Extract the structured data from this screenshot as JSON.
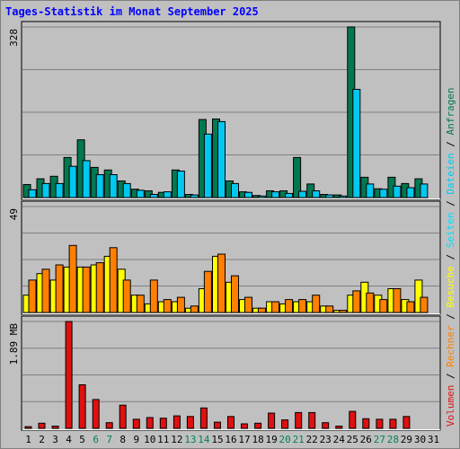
{
  "chart_data": {
    "type": "bar",
    "title": "Tages-Statistik im Monat September 2025",
    "days": [
      "1",
      "2",
      "3",
      "4",
      "5",
      "6",
      "7",
      "8",
      "9",
      "10",
      "11",
      "12",
      "13",
      "14",
      "15",
      "16",
      "17",
      "18",
      "19",
      "20",
      "21",
      "22",
      "23",
      "24",
      "25",
      "26",
      "27",
      "28",
      "29",
      "30",
      "31"
    ],
    "weekend_days": [
      "6",
      "7",
      "13",
      "14",
      "20",
      "21",
      "27",
      "28"
    ],
    "colors": {
      "anfragen": "#007850",
      "dateien": "#00c8f0",
      "seiten": "#00e0ff",
      "besuche": "#ffff00",
      "rechner": "#ff8000",
      "volumen": "#e01010",
      "title": "#0000ff",
      "weekend": "#00805a",
      "weekday": "#000000",
      "background": "#c0c0c0",
      "gridline": "#808080"
    },
    "panels": [
      {
        "name": "requests",
        "max_label": "328",
        "ymax": 328,
        "series": [
          {
            "key": "anfragen",
            "values": [
              25,
              36,
              41,
              77,
              111,
              58,
              53,
              32,
              16,
              13,
              10,
              53,
              6,
              150,
              151,
              32,
              11,
              4,
              13,
              13,
              77,
              26,
              6,
              5,
              328,
              39,
              17,
              39,
              27,
              36,
              null
            ]
          },
          {
            "key": "dateien",
            "values": [
              15,
              27,
              27,
              60,
              71,
              44,
              44,
              27,
              14,
              6,
              11,
              51,
              5,
              122,
              146,
              27,
              10,
              3,
              11,
              8,
              12,
              13,
              5,
              3,
              208,
              26,
              16,
              22,
              19,
              26,
              null
            ]
          }
        ]
      },
      {
        "name": "visits",
        "max_label": "49",
        "ymax": 49,
        "series": [
          {
            "key": "besuche",
            "values": [
              8,
              18,
              15,
              21,
              21,
              22,
              26,
              20,
              8,
              4,
              5,
              5,
              2,
              11,
              26,
              14,
              6,
              2,
              5,
              4,
              5,
              5,
              3,
              1,
              8,
              14,
              8,
              11,
              6,
              15,
              null
            ]
          },
          {
            "key": "rechner",
            "values": [
              15,
              20,
              22,
              31,
              21,
              23,
              30,
              15,
              8,
              15,
              6,
              7,
              3,
              19,
              27,
              17,
              7,
              2,
              5,
              6,
              6,
              8,
              3,
              1,
              10,
              9,
              6,
              11,
              5,
              7,
              null
            ]
          }
        ]
      },
      {
        "name": "volume",
        "max_label": "1.89 MB",
        "ymax": 1.89,
        "series": [
          {
            "key": "volumen",
            "values": [
              0.03,
              0.09,
              0.04,
              1.89,
              0.77,
              0.51,
              0.1,
              0.41,
              0.16,
              0.19,
              0.18,
              0.22,
              0.21,
              0.36,
              0.11,
              0.21,
              0.08,
              0.09,
              0.27,
              0.15,
              0.28,
              0.28,
              0.1,
              0.04,
              0.3,
              0.17,
              0.16,
              0.16,
              0.21,
              null,
              null
            ]
          }
        ]
      }
    ],
    "legend": [
      {
        "label": "Volumen",
        "key": "volumen"
      },
      {
        "label": "Rechner",
        "key": "rechner"
      },
      {
        "label": "Besuche",
        "key": "besuche"
      },
      {
        "label": "Seiten",
        "key": "seiten"
      },
      {
        "label": "Dateien",
        "key": "dateien"
      },
      {
        "label": "Anfragen",
        "key": "anfragen"
      }
    ],
    "legend_separator": " / "
  }
}
